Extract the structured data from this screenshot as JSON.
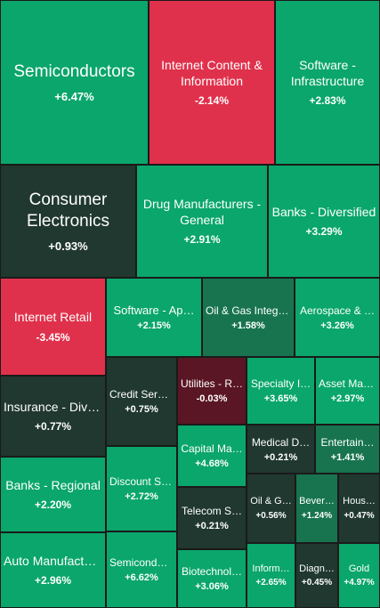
{
  "colors": {
    "strong_up": "#0aa66b",
    "mid_up": "#17744f",
    "weak_up": "#20382f",
    "flat_down": "#5a1624",
    "strong_down": "#e0314c"
  },
  "tiles": [
    {
      "name": "Semiconductors",
      "change": "+6.47%",
      "color": "strong_up"
    },
    {
      "name": "Internet Content & Information",
      "change": "-2.14%",
      "color": "strong_down"
    },
    {
      "name": "Software - Infrastructure",
      "change": "+2.83%",
      "color": "strong_up"
    },
    {
      "name": "Consumer Electronics",
      "change": "+0.93%",
      "color": "weak_up"
    },
    {
      "name": "Drug Manufacturers - General",
      "change": "+2.91%",
      "color": "strong_up"
    },
    {
      "name": "Banks - Diversified",
      "change": "+3.29%",
      "color": "strong_up"
    },
    {
      "name": "Internet Retail",
      "change": "-3.45%",
      "color": "strong_down"
    },
    {
      "name": "Software - Ap…",
      "change": "+2.15%",
      "color": "strong_up"
    },
    {
      "name": "Oil & Gas Integr…",
      "change": "+1.58%",
      "color": "mid_up"
    },
    {
      "name": "Aerospace & …",
      "change": "+3.26%",
      "color": "strong_up"
    },
    {
      "name": "Insurance - Dive…",
      "change": "+0.77%",
      "color": "weak_up"
    },
    {
      "name": "Credit Servi…",
      "change": "+0.75%",
      "color": "weak_up"
    },
    {
      "name": "Utilities - R…",
      "change": "-0.03%",
      "color": "flat_down"
    },
    {
      "name": "Specialty I…",
      "change": "+3.65%",
      "color": "strong_up"
    },
    {
      "name": "Asset Man…",
      "change": "+2.97%",
      "color": "strong_up"
    },
    {
      "name": "Capital Ma…",
      "change": "+4.68%",
      "color": "strong_up"
    },
    {
      "name": "Medical D…",
      "change": "+0.21%",
      "color": "weak_up"
    },
    {
      "name": "Entertain…",
      "change": "+1.41%",
      "color": "mid_up"
    },
    {
      "name": "Banks - Regional",
      "change": "+2.20%",
      "color": "strong_up"
    },
    {
      "name": "Discount St…",
      "change": "+2.72%",
      "color": "strong_up"
    },
    {
      "name": "Telecom S…",
      "change": "+0.21%",
      "color": "weak_up"
    },
    {
      "name": "Oil & G…",
      "change": "+0.56%",
      "color": "weak_up"
    },
    {
      "name": "Bever…",
      "change": "+1.24%",
      "color": "mid_up"
    },
    {
      "name": "Hous…",
      "change": "+0.47%",
      "color": "weak_up"
    },
    {
      "name": "Auto Manufactu…",
      "change": "+2.96%",
      "color": "strong_up"
    },
    {
      "name": "Semicondu…",
      "change": "+6.62%",
      "color": "strong_up"
    },
    {
      "name": "Biotechnol…",
      "change": "+3.06%",
      "color": "strong_up"
    },
    {
      "name": "Inform…",
      "change": "+2.65%",
      "color": "strong_up"
    },
    {
      "name": "Diagn…",
      "change": "+0.45%",
      "color": "weak_up"
    },
    {
      "name": "Gold",
      "change": "+4.97%",
      "color": "strong_up"
    }
  ]
}
